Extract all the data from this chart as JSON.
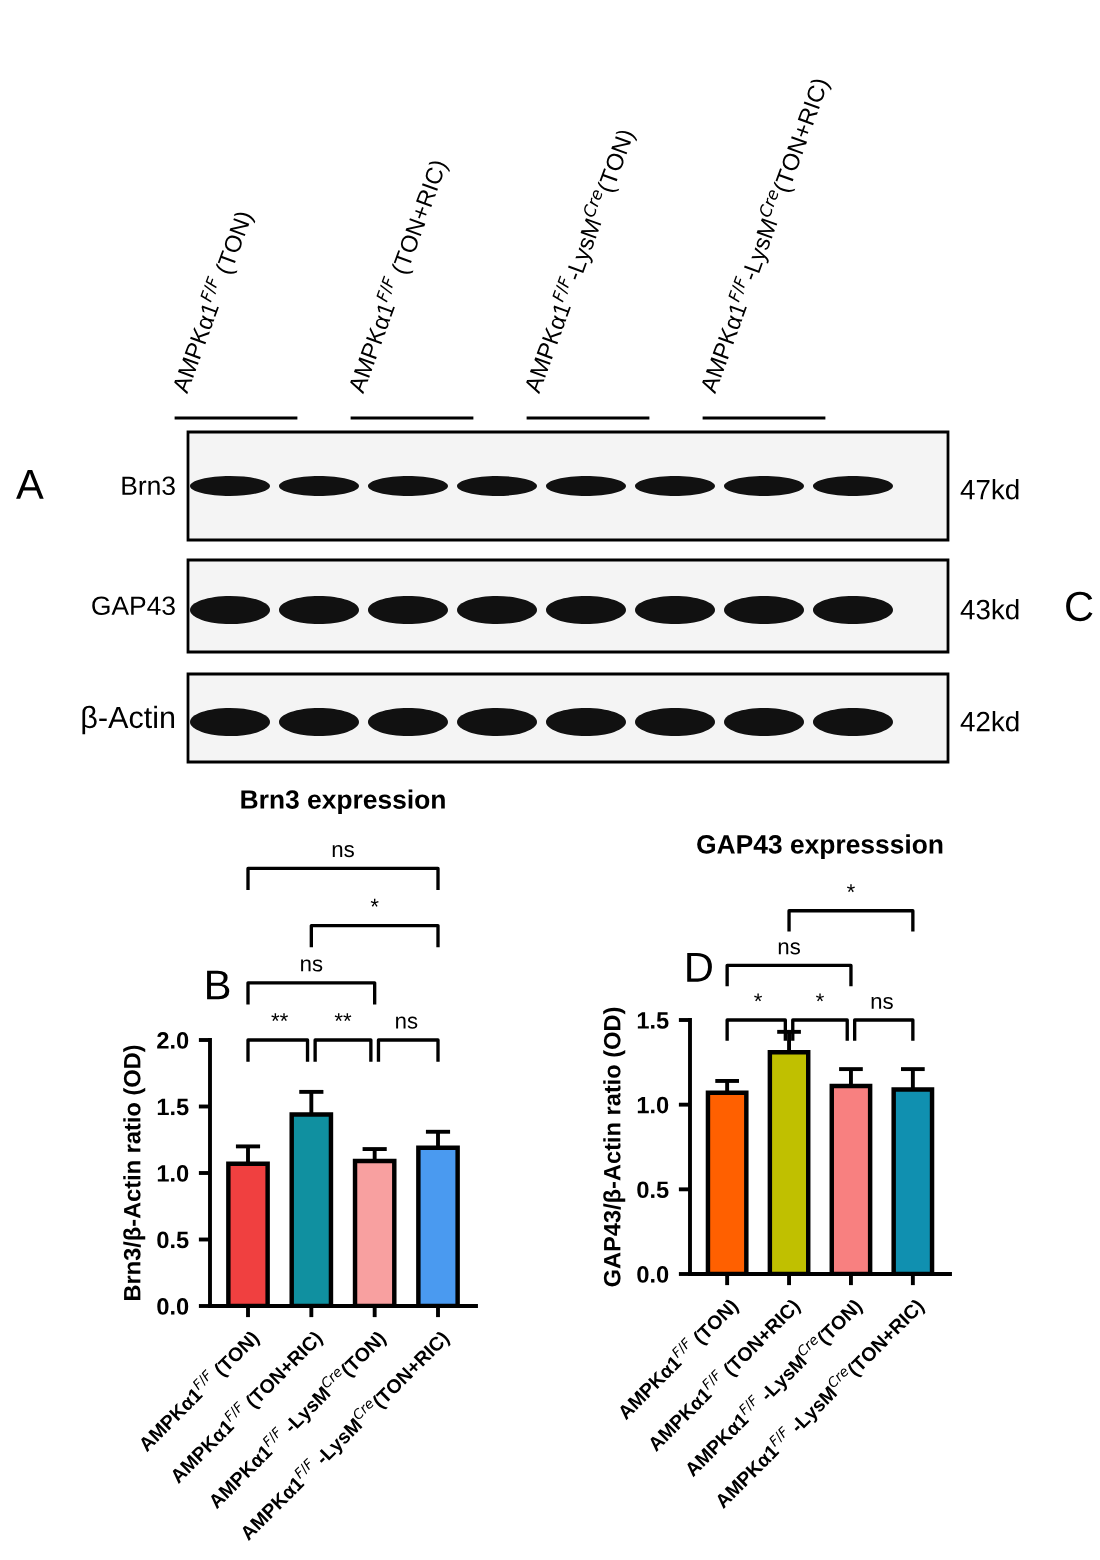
{
  "chart_data": [
    {
      "type": "other",
      "annotations": [
        "AMPKα1$^{F/F}$ (TON)",
        "AMPKα1$^{F/F}$ (TON+RIC)",
        "AMPKα1$^{F/F}$-LysM$^{Cre}$(TON)",
        "AMPKα1$^{F/F}$-LysM$^{Cre}$(TON+RIC)",
        "Brn3",
        "GAP43",
        "β-Actin",
        "47kd",
        "43kd",
        "42kd",
        "A",
        "C"
      ]
    },
    {
      "type": "bar",
      "title": "Brn3 expression",
      "ylabel": "Brn3/β-Actin ratio (OD)",
      "categories": [
        "AMPKα1$^{F/F}$ (TON)",
        "AMPKα1$^{F/F}$ (TON+RIC)",
        "AMPKα1$^{F/F}$ -LysM$^{Cre}$(TON)",
        "AMPKα1$^{F/F}$ -LysM$^{Cre}$(TON+RIC)"
      ],
      "values": [
        1.07,
        1.44,
        1.09,
        1.19
      ],
      "colors": [
        "#f04040",
        "#1090a0",
        "#f8a0a0",
        "#4a9af0"
      ],
      "errors": [
        [
          1.07,
          1.2
        ],
        [
          1.44,
          1.61
        ],
        [
          1.09,
          1.18
        ],
        [
          1.19,
          1.31
        ]
      ],
      "ylim": [
        0,
        2.0
      ],
      "yticks": [
        {
          "value": 0,
          "label": "0.0"
        },
        {
          "value": 0.5,
          "label": "0.5"
        },
        {
          "value": 1.0,
          "label": "1.0"
        },
        {
          "value": 1.5,
          "label": "1.5"
        },
        {
          "value": 2.0,
          "label": "2.0"
        }
      ],
      "grid": false,
      "legend": false,
      "annotations": [
        "B",
        "**",
        "**",
        "ns",
        "ns",
        "*",
        "ns"
      ]
    },
    {
      "type": "bar",
      "title": "GAP43 expresssion",
      "ylabel": "GAP43/β-Actin ratio (OD)",
      "categories": [
        "AMPKα1$^{F/F}$ (TON)",
        "AMPKα1$^{F/F}$ (TON+RIC)",
        "AMPKα1$^{F/F}$ -LysM$^{Cre}$(TON)",
        "AMPKα1$^{F/F}$ -LysM$^{Cre}$(TON+RIC)"
      ],
      "values": [
        1.07,
        1.31,
        1.11,
        1.09
      ],
      "colors": [
        "#ff6000",
        "#c0c000",
        "#f88080",
        "#1090b0"
      ],
      "errors": [
        [
          1.07,
          1.14
        ],
        [
          1.31,
          1.43
        ],
        [
          1.11,
          1.21
        ],
        [
          1.09,
          1.21
        ]
      ],
      "ylim": [
        0,
        1.5
      ],
      "yticks": [
        {
          "value": 0,
          "label": "0.0"
        },
        {
          "value": 0.5,
          "label": "0.5"
        },
        {
          "value": 1.0,
          "label": "1.0"
        },
        {
          "value": 1.5,
          "label": "1.5"
        }
      ],
      "grid": false,
      "legend": false,
      "annotations": [
        "D",
        "*",
        "*",
        "ns",
        "ns",
        "*"
      ]
    }
  ]
}
